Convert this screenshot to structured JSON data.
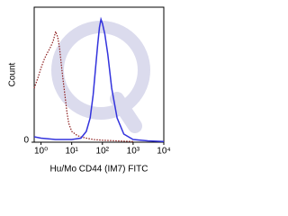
{
  "chart_data": {
    "type": "line",
    "x_label": "Hu/Mo CD44 (IM7) FITC",
    "y_label": "Count",
    "xscale": "log",
    "xlim": [
      0.6,
      10000
    ],
    "xticks": [
      {
        "value": 1,
        "label": "10⁰"
      },
      {
        "value": 10,
        "label": "10¹"
      },
      {
        "value": 100,
        "label": "10²"
      },
      {
        "value": 1000,
        "label": "10³"
      },
      {
        "value": 10000,
        "label": "10⁴"
      }
    ],
    "ylim": [
      0,
      100
    ],
    "yticks": [
      0
    ],
    "series": [
      {
        "color": "#8b1a1a",
        "dash": "dotted",
        "x": [
          0.6,
          0.8,
          1,
          1.3,
          1.6,
          2,
          2.5,
          3,
          3.5,
          4,
          5,
          6,
          7,
          8,
          10,
          15,
          20,
          30,
          50,
          100,
          300,
          1000
        ],
        "values": [
          40,
          48,
          55,
          62,
          66,
          70,
          75,
          82,
          78,
          70,
          50,
          35,
          22,
          14,
          8,
          5,
          4,
          3,
          2,
          1.5,
          1,
          0.5
        ]
      },
      {
        "color": "#3333dd",
        "dash": "solid",
        "x": [
          0.6,
          1,
          3,
          10,
          20,
          30,
          40,
          50,
          60,
          70,
          80,
          90,
          100,
          120,
          150,
          200,
          300,
          500,
          1000,
          3000,
          10000
        ],
        "values": [
          4,
          3,
          2,
          2,
          3,
          8,
          18,
          35,
          55,
          72,
          85,
          91,
          88,
          80,
          65,
          40,
          18,
          6,
          2,
          1,
          0.5
        ]
      }
    ]
  }
}
